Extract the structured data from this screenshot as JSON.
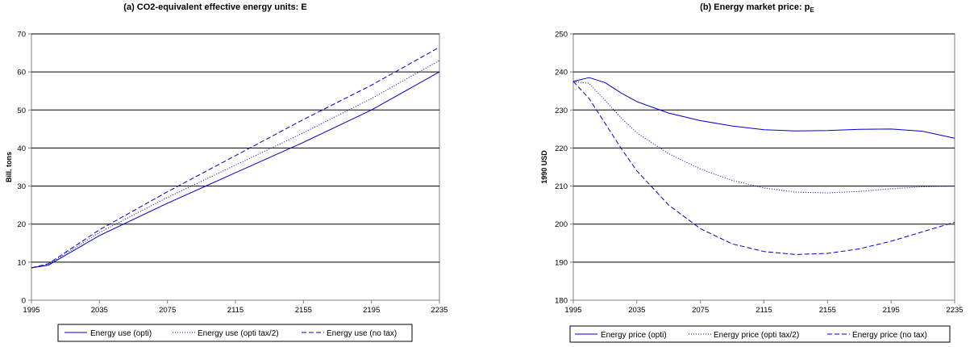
{
  "colors": {
    "line": "#0000cc",
    "grid": "#000000",
    "axis": "#808080"
  },
  "chart_data": [
    {
      "type": "line",
      "title": "(a) CO2-equivalent effective energy units: E",
      "xlabel": "",
      "ylabel": "Bill. tons",
      "xticks": [
        1995,
        2035,
        2075,
        2115,
        2155,
        2195,
        2235
      ],
      "xlim": [
        1995,
        2235
      ],
      "ylim": [
        0,
        70
      ],
      "yticks": [
        0,
        10,
        20,
        30,
        40,
        50,
        60,
        70
      ],
      "grid": "horizontal",
      "legend_position": "bottom",
      "series": [
        {
          "name": "Energy use (opti)",
          "style": "solid",
          "x": [
            1995,
            2005,
            2035,
            2075,
            2115,
            2155,
            2195,
            2235
          ],
          "y": [
            8.5,
            9.2,
            17.0,
            25.5,
            33.5,
            41.5,
            50.0,
            60.0
          ]
        },
        {
          "name": "Energy use (opti tax/2)",
          "style": "dotted",
          "x": [
            1995,
            2005,
            2035,
            2075,
            2115,
            2155,
            2195,
            2235
          ],
          "y": [
            8.5,
            9.4,
            17.8,
            27.0,
            35.5,
            44.0,
            53.0,
            63.0
          ]
        },
        {
          "name": "Energy use (no tax)",
          "style": "dashed",
          "x": [
            1995,
            2005,
            2035,
            2075,
            2115,
            2155,
            2195,
            2235
          ],
          "y": [
            8.5,
            9.6,
            18.5,
            28.5,
            38.0,
            47.5,
            56.5,
            66.5
          ]
        }
      ]
    },
    {
      "type": "line",
      "title_main": "(b) Energy market price: p",
      "title_sub": "E",
      "xlabel": "",
      "ylabel": "1990 USD",
      "xticks": [
        1995,
        2035,
        2075,
        2115,
        2155,
        2195,
        2235
      ],
      "xlim": [
        1995,
        2235
      ],
      "ylim": [
        180,
        250
      ],
      "yticks": [
        180,
        190,
        200,
        210,
        220,
        230,
        240,
        250
      ],
      "grid": "horizontal",
      "legend_position": "bottom",
      "series": [
        {
          "name": "Energy price (opti)",
          "style": "solid",
          "x": [
            1995,
            2005,
            2015,
            2025,
            2035,
            2055,
            2075,
            2095,
            2115,
            2135,
            2155,
            2175,
            2195,
            2215,
            2235
          ],
          "y": [
            237.5,
            238.5,
            237.2,
            234.5,
            232.2,
            229.2,
            227.2,
            225.8,
            224.8,
            224.5,
            224.6,
            224.9,
            225.0,
            224.4,
            222.6
          ]
        },
        {
          "name": "Energy price (opti tax/2)",
          "style": "dotted",
          "x": [
            1995,
            2005,
            2015,
            2025,
            2035,
            2055,
            2075,
            2095,
            2115,
            2135,
            2155,
            2175,
            2195,
            2215,
            2235
          ],
          "y": [
            237.5,
            237.0,
            232.5,
            228.0,
            224.0,
            218.5,
            214.5,
            211.5,
            209.5,
            208.4,
            208.2,
            208.6,
            209.3,
            209.8,
            210.0
          ]
        },
        {
          "name": "Energy price (no tax)",
          "style": "dashed",
          "x": [
            1995,
            2005,
            2015,
            2025,
            2035,
            2055,
            2075,
            2095,
            2115,
            2135,
            2155,
            2175,
            2195,
            2215,
            2235
          ],
          "y": [
            237.5,
            233.0,
            226.5,
            220.0,
            214.0,
            205.0,
            198.8,
            194.8,
            192.8,
            192.0,
            192.3,
            193.5,
            195.5,
            198.0,
            200.5
          ]
        }
      ]
    }
  ]
}
